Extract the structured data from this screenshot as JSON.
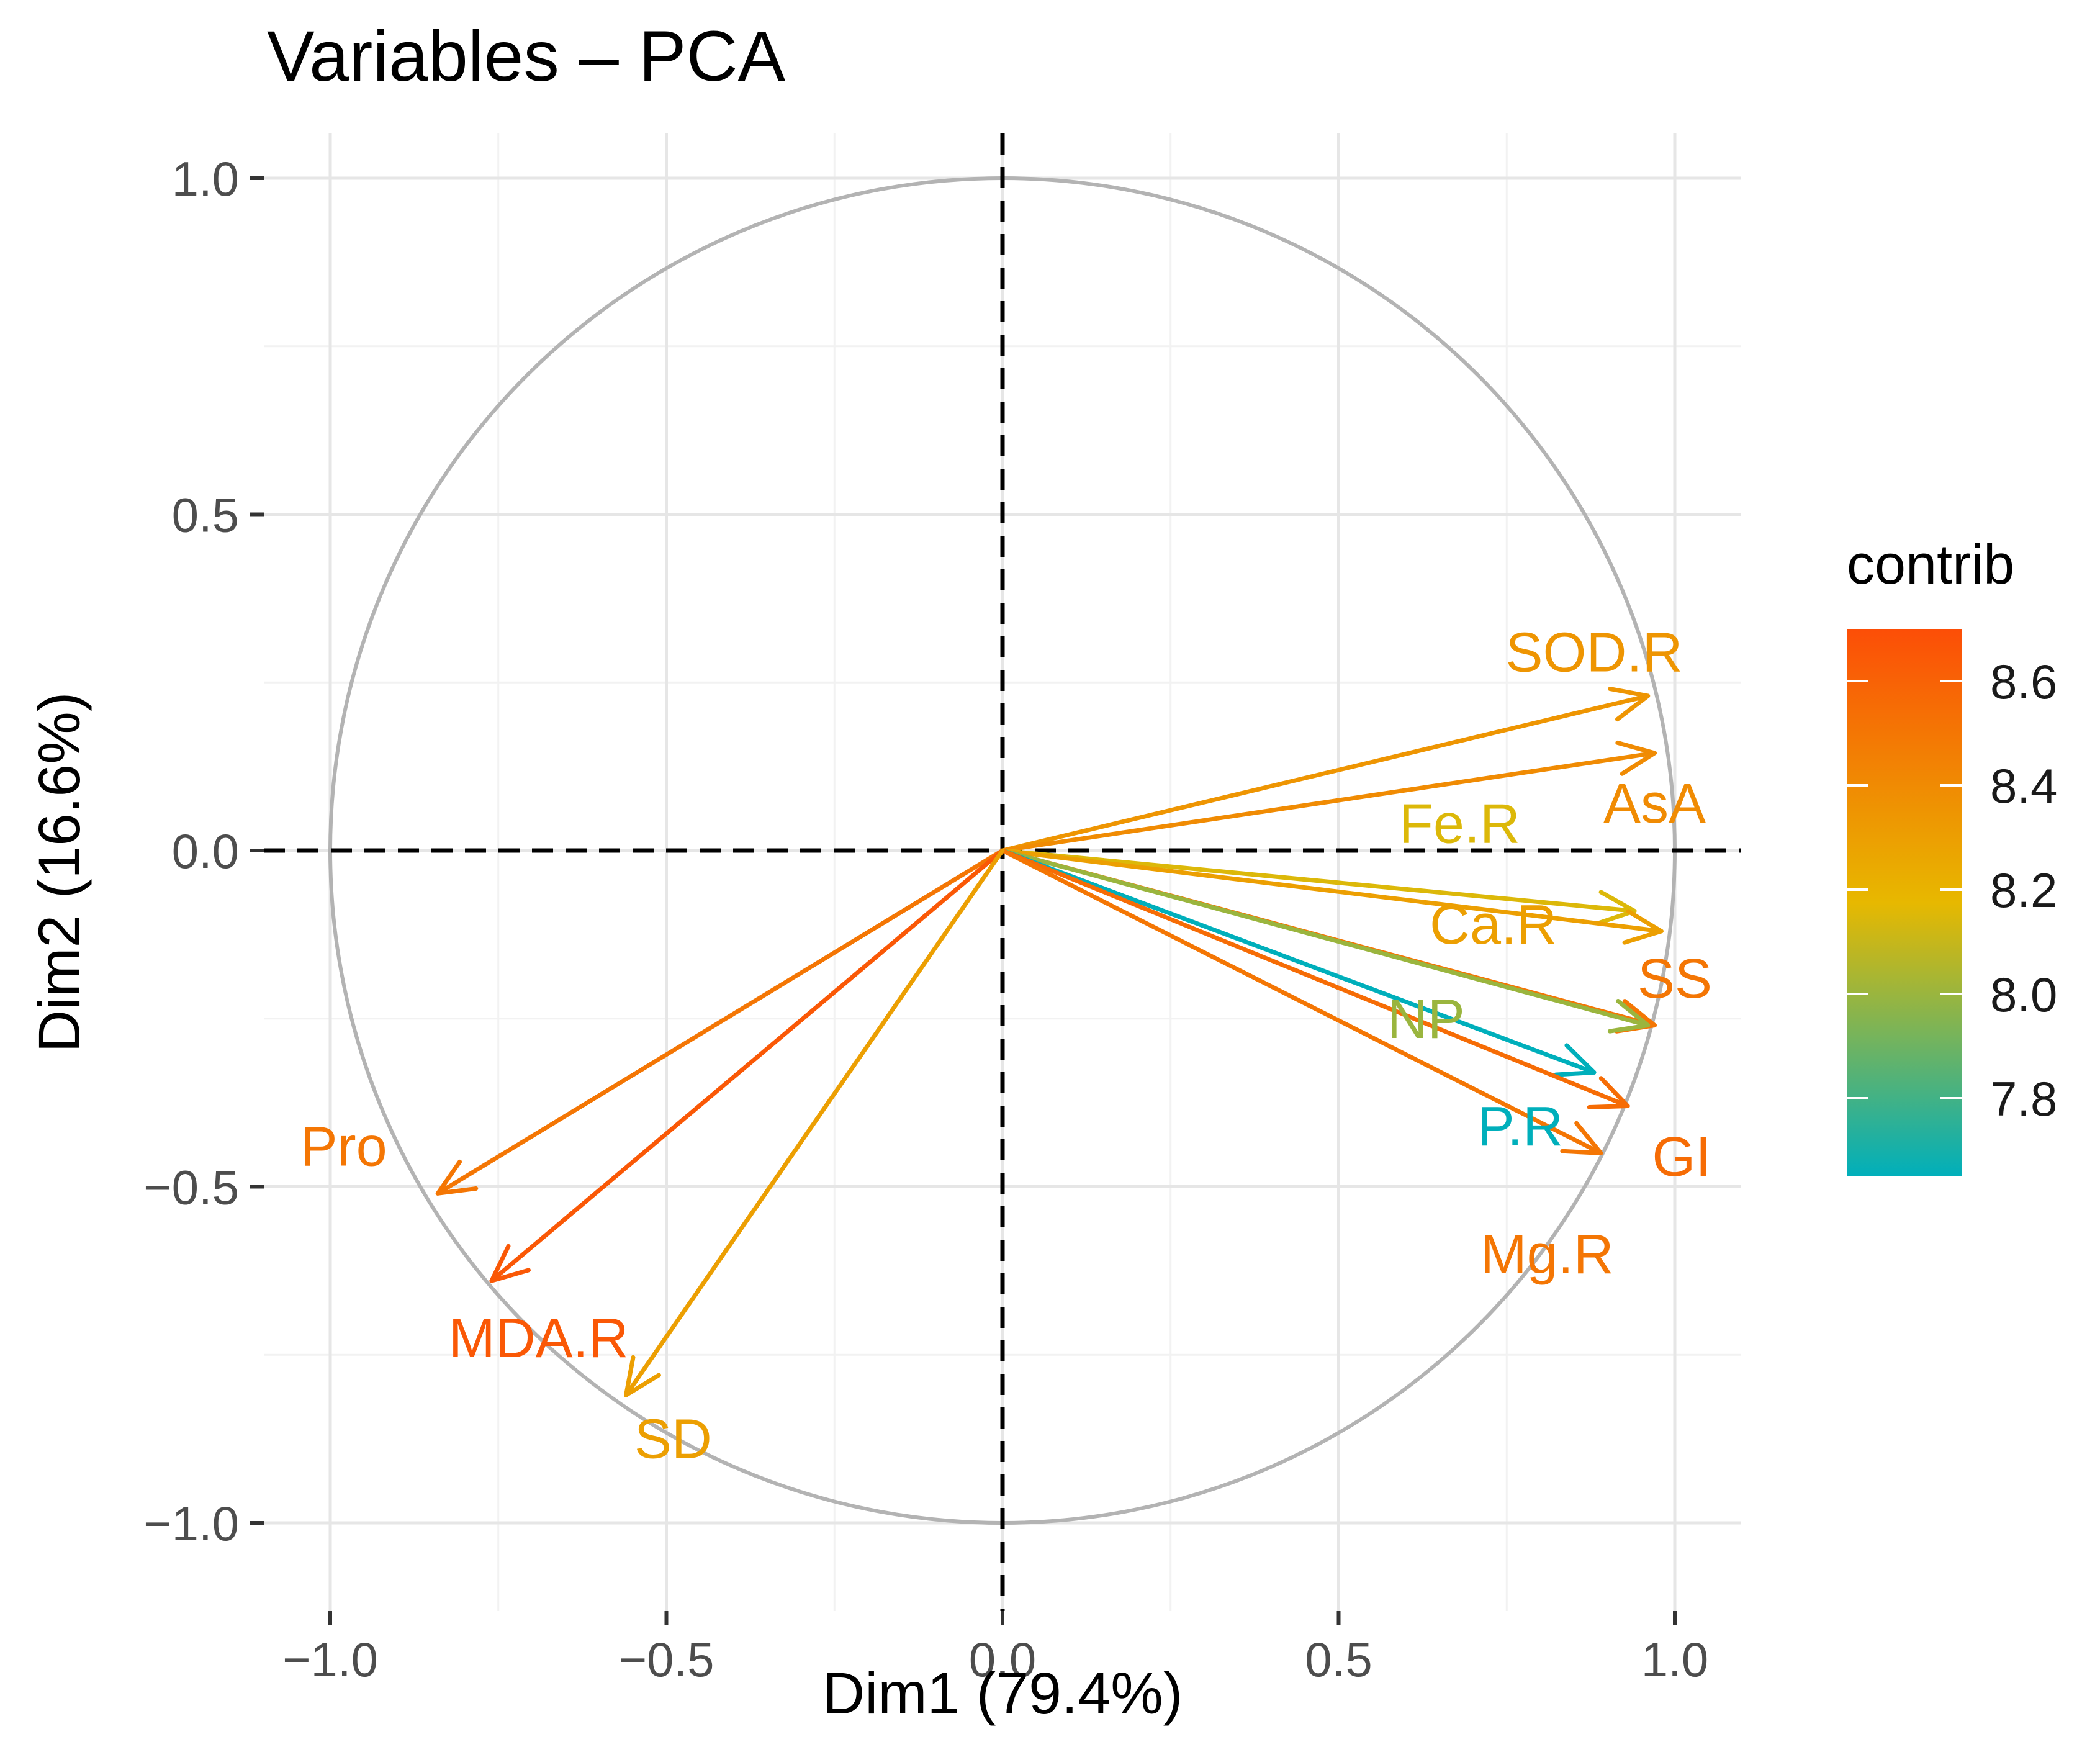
{
  "chart_data": {
    "type": "pca-variables",
    "title": "Variables – PCA",
    "xlabel": "Dim1 (79.4%)",
    "ylabel": "Dim2 (16.6%)",
    "xlim": [
      -1.1,
      1.1
    ],
    "ylim": [
      -1.1,
      1.1
    ],
    "x_ticks": [
      -1.0,
      -0.5,
      0.0,
      0.5,
      1.0
    ],
    "y_ticks": [
      1.0,
      0.5,
      0.0,
      -0.5,
      -1.0
    ],
    "x_tick_labels": [
      "−1.0",
      "−0.5",
      "0.0",
      "0.5",
      "1.0"
    ],
    "y_tick_labels": [
      "1.0",
      "0.5",
      "0.0",
      "−0.5",
      "−1.0"
    ],
    "grid": true,
    "unit_circle": true,
    "variables": [
      {
        "name": "SOD.R",
        "x": 0.96,
        "y": 0.23,
        "contrib": 8.35,
        "label_x": 0.88,
        "label_y": 0.295
      },
      {
        "name": "AsA",
        "x": 0.97,
        "y": 0.145,
        "contrib": 8.4,
        "label_x": 0.97,
        "label_y": 0.07
      },
      {
        "name": "Fe.R",
        "x": 0.94,
        "y": -0.09,
        "contrib": 8.15,
        "label_x": 0.68,
        "label_y": 0.04
      },
      {
        "name": "Ca.R",
        "x": 0.98,
        "y": -0.12,
        "contrib": 8.3,
        "label_x": 0.73,
        "label_y": -0.11
      },
      {
        "name": "SS",
        "x": 0.97,
        "y": -0.26,
        "contrib": 8.5,
        "label_x": 1.0,
        "label_y": -0.19
      },
      {
        "name": "NP",
        "x": 0.96,
        "y": -0.26,
        "contrib": 8.0,
        "label_x": 0.63,
        "label_y": -0.25
      },
      {
        "name": "P.R",
        "x": 0.88,
        "y": -0.33,
        "contrib": 7.65,
        "label_x": 0.77,
        "label_y": -0.41
      },
      {
        "name": "GI",
        "x": 0.93,
        "y": -0.38,
        "contrib": 8.55,
        "label_x": 1.01,
        "label_y": -0.455
      },
      {
        "name": "Mg.R",
        "x": 0.89,
        "y": -0.45,
        "contrib": 8.5,
        "label_x": 0.81,
        "label_y": -0.6
      },
      {
        "name": "Pro",
        "x": -0.84,
        "y": -0.51,
        "contrib": 8.5,
        "label_x": -0.98,
        "label_y": -0.44
      },
      {
        "name": "MDA.R",
        "x": -0.76,
        "y": -0.64,
        "contrib": 8.65,
        "label_x": -0.69,
        "label_y": -0.725
      },
      {
        "name": "SD",
        "x": -0.56,
        "y": -0.81,
        "contrib": 8.3,
        "label_x": -0.49,
        "label_y": -0.875
      }
    ],
    "legend": {
      "title": "contrib",
      "position": "right",
      "min": 7.65,
      "max": 8.7,
      "ticks": [
        8.6,
        8.4,
        8.2,
        8.0,
        7.8
      ],
      "tick_labels": [
        "8.6",
        "8.4",
        "8.2",
        "8.0",
        "7.8"
      ],
      "colors": [
        "#00AFBB",
        "#E7B800",
        "#FC4E07"
      ]
    }
  }
}
